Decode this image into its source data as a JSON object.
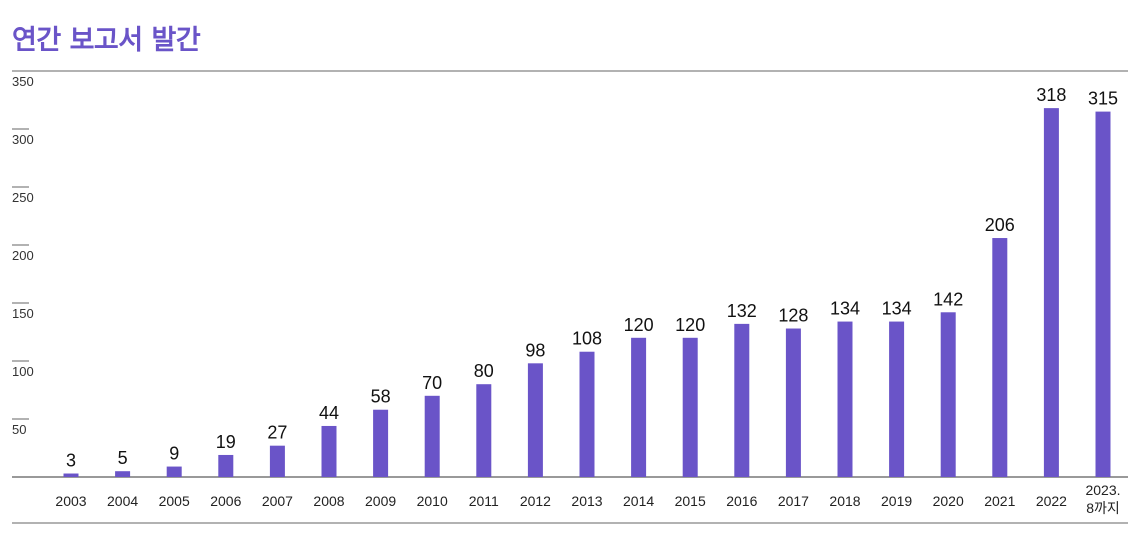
{
  "header": {
    "title": "연간 보고서 발간"
  },
  "chart_data": {
    "type": "bar",
    "title": "연간 보고서 발간",
    "xlabel": "",
    "ylabel": "",
    "ylim": [
      0,
      350
    ],
    "yticks": [
      50,
      100,
      150,
      200,
      250,
      300,
      350
    ],
    "grid": false,
    "categories": [
      "2003",
      "2004",
      "2005",
      "2006",
      "2007",
      "2008",
      "2009",
      "2010",
      "2011",
      "2012",
      "2013",
      "2014",
      "2015",
      "2016",
      "2017",
      "2018",
      "2019",
      "2020",
      "2021",
      "2022",
      "2023.\n8까지"
    ],
    "values": [
      3,
      5,
      9,
      19,
      27,
      44,
      58,
      70,
      80,
      98,
      108,
      120,
      120,
      132,
      128,
      134,
      134,
      142,
      206,
      318,
      315
    ],
    "bar_color": "#6a54c8"
  }
}
